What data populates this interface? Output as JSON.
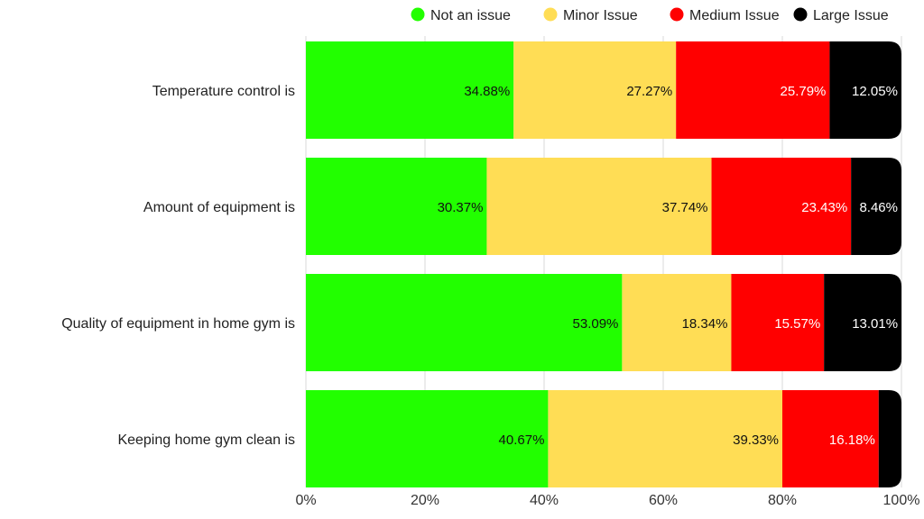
{
  "chart_data": {
    "type": "bar",
    "orientation": "horizontal",
    "stacked": true,
    "title": "",
    "xlabel": "",
    "ylabel": "",
    "xlim": [
      0,
      100
    ],
    "grid": true,
    "legend_position": "top-right",
    "categories": [
      "Temperature control is",
      "Amount of equipment is",
      "Quality of equipment in home gym is",
      "Keeping home gym clean is"
    ],
    "series": [
      {
        "name": "Not an issue",
        "color": "#22ff00",
        "label_color": "#111111",
        "values": [
          34.88,
          30.37,
          53.09,
          40.67
        ],
        "labels": [
          "34.88%",
          "30.37%",
          "53.09%",
          "40.67%"
        ]
      },
      {
        "name": "Minor Issue",
        "color": "#ffdd55",
        "label_color": "#111111",
        "values": [
          27.27,
          37.74,
          18.34,
          39.33
        ],
        "labels": [
          "27.27%",
          "37.74%",
          "18.34%",
          "39.33%"
        ]
      },
      {
        "name": "Medium Issue",
        "color": "#ff0000",
        "label_color": "#ffffff",
        "values": [
          25.79,
          23.43,
          15.57,
          16.18
        ],
        "labels": [
          "25.79%",
          "23.43%",
          "15.57%",
          "16.18%"
        ]
      },
      {
        "name": "Large Issue",
        "color": "#000000",
        "label_color": "#ffffff",
        "values": [
          12.05,
          8.46,
          13.01,
          3.82
        ],
        "labels": [
          "12.05%",
          "8.46%",
          "13.01%",
          ""
        ]
      }
    ],
    "x_ticks": [
      "0%",
      "20%",
      "40%",
      "60%",
      "80%",
      "100%"
    ]
  }
}
